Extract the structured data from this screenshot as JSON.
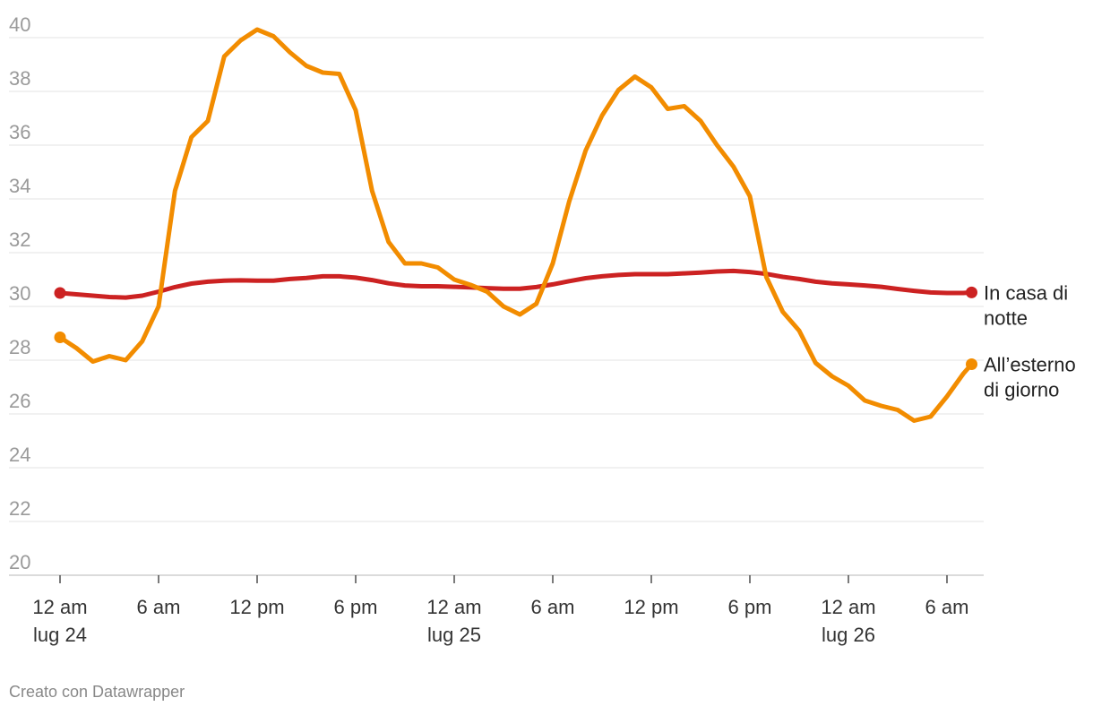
{
  "chart_data": {
    "type": "line",
    "y_ticks": [
      "20",
      "22",
      "24",
      "26",
      "28",
      "30",
      "32",
      "34",
      "36",
      "38",
      "40"
    ],
    "ylim": [
      20,
      40
    ],
    "x_range_hours": [
      0,
      54
    ],
    "x_ticks": [
      {
        "hour": 0,
        "lines": [
          "12 am",
          "lug 24"
        ]
      },
      {
        "hour": 6,
        "lines": [
          "6 am"
        ]
      },
      {
        "hour": 12,
        "lines": [
          "12 pm"
        ]
      },
      {
        "hour": 18,
        "lines": [
          "6 pm"
        ]
      },
      {
        "hour": 24,
        "lines": [
          "12 am",
          "lug 25"
        ]
      },
      {
        "hour": 30,
        "lines": [
          "6 am"
        ]
      },
      {
        "hour": 36,
        "lines": [
          "12 pm"
        ]
      },
      {
        "hour": 42,
        "lines": [
          "6 pm"
        ]
      },
      {
        "hour": 48,
        "lines": [
          "12 am",
          "lug 26"
        ]
      },
      {
        "hour": 54,
        "lines": [
          "6 am"
        ]
      }
    ],
    "grid": true,
    "series": [
      {
        "name_lines": [
          "In casa di",
          "notte"
        ],
        "color": "#cc2222",
        "points": [
          [
            0,
            30.5
          ],
          [
            1,
            30.45
          ],
          [
            2,
            30.4
          ],
          [
            3,
            30.35
          ],
          [
            4,
            30.33
          ],
          [
            5,
            30.4
          ],
          [
            6,
            30.55
          ],
          [
            7,
            30.72
          ],
          [
            8,
            30.85
          ],
          [
            9,
            30.92
          ],
          [
            10,
            30.96
          ],
          [
            11,
            30.97
          ],
          [
            12,
            30.96
          ],
          [
            13,
            30.96
          ],
          [
            14,
            31.02
          ],
          [
            15,
            31.06
          ],
          [
            16,
            31.12
          ],
          [
            17,
            31.12
          ],
          [
            18,
            31.07
          ],
          [
            19,
            30.98
          ],
          [
            20,
            30.86
          ],
          [
            21,
            30.78
          ],
          [
            22,
            30.75
          ],
          [
            23,
            30.75
          ],
          [
            24,
            30.73
          ],
          [
            25,
            30.71
          ],
          [
            26,
            30.68
          ],
          [
            27,
            30.66
          ],
          [
            28,
            30.66
          ],
          [
            29,
            30.72
          ],
          [
            30,
            30.82
          ],
          [
            31,
            30.94
          ],
          [
            32,
            31.05
          ],
          [
            33,
            31.12
          ],
          [
            34,
            31.17
          ],
          [
            35,
            31.2
          ],
          [
            36,
            31.2
          ],
          [
            37,
            31.2
          ],
          [
            38,
            31.23
          ],
          [
            39,
            31.26
          ],
          [
            40,
            31.3
          ],
          [
            41,
            31.32
          ],
          [
            42,
            31.28
          ],
          [
            43,
            31.21
          ],
          [
            44,
            31.1
          ],
          [
            45,
            31.02
          ],
          [
            46,
            30.92
          ],
          [
            47,
            30.86
          ],
          [
            48,
            30.82
          ],
          [
            49,
            30.78
          ],
          [
            50,
            30.73
          ],
          [
            51,
            30.65
          ],
          [
            52,
            30.58
          ],
          [
            53,
            30.52
          ],
          [
            54,
            30.5
          ],
          [
            55,
            30.5
          ],
          [
            55.5,
            30.52
          ]
        ]
      },
      {
        "name_lines": [
          "All’esterno",
          "di giorno"
        ],
        "color": "#f28c00",
        "points": [
          [
            0,
            28.85
          ],
          [
            1,
            28.45
          ],
          [
            2,
            27.95
          ],
          [
            3,
            28.15
          ],
          [
            4,
            28.0
          ],
          [
            5,
            28.7
          ],
          [
            6,
            30.0
          ],
          [
            7,
            34.3
          ],
          [
            8,
            36.3
          ],
          [
            9,
            36.9
          ],
          [
            10,
            39.3
          ],
          [
            11,
            39.9
          ],
          [
            12,
            40.3
          ],
          [
            13,
            40.05
          ],
          [
            14,
            39.45
          ],
          [
            15,
            38.95
          ],
          [
            16,
            38.7
          ],
          [
            17,
            38.65
          ],
          [
            18,
            37.3
          ],
          [
            19,
            34.3
          ],
          [
            20,
            32.4
          ],
          [
            21,
            31.6
          ],
          [
            22,
            31.6
          ],
          [
            23,
            31.45
          ],
          [
            24,
            31.0
          ],
          [
            25,
            30.8
          ],
          [
            26,
            30.55
          ],
          [
            27,
            30.0
          ],
          [
            28,
            29.7
          ],
          [
            29,
            30.1
          ],
          [
            30,
            31.6
          ],
          [
            31,
            33.9
          ],
          [
            32,
            35.8
          ],
          [
            33,
            37.1
          ],
          [
            34,
            38.05
          ],
          [
            35,
            38.55
          ],
          [
            36,
            38.15
          ],
          [
            37,
            37.35
          ],
          [
            38,
            37.45
          ],
          [
            39,
            36.9
          ],
          [
            40,
            36.0
          ],
          [
            41,
            35.2
          ],
          [
            42,
            34.1
          ],
          [
            43,
            31.1
          ],
          [
            44,
            29.8
          ],
          [
            45,
            29.1
          ],
          [
            46,
            27.9
          ],
          [
            47,
            27.4
          ],
          [
            48,
            27.05
          ],
          [
            49,
            26.5
          ],
          [
            50,
            26.3
          ],
          [
            51,
            26.15
          ],
          [
            52,
            25.75
          ],
          [
            53,
            25.9
          ],
          [
            54,
            26.65
          ],
          [
            55,
            27.5
          ],
          [
            55.5,
            27.85
          ]
        ]
      }
    ]
  },
  "credit": "Creato con Datawrapper"
}
